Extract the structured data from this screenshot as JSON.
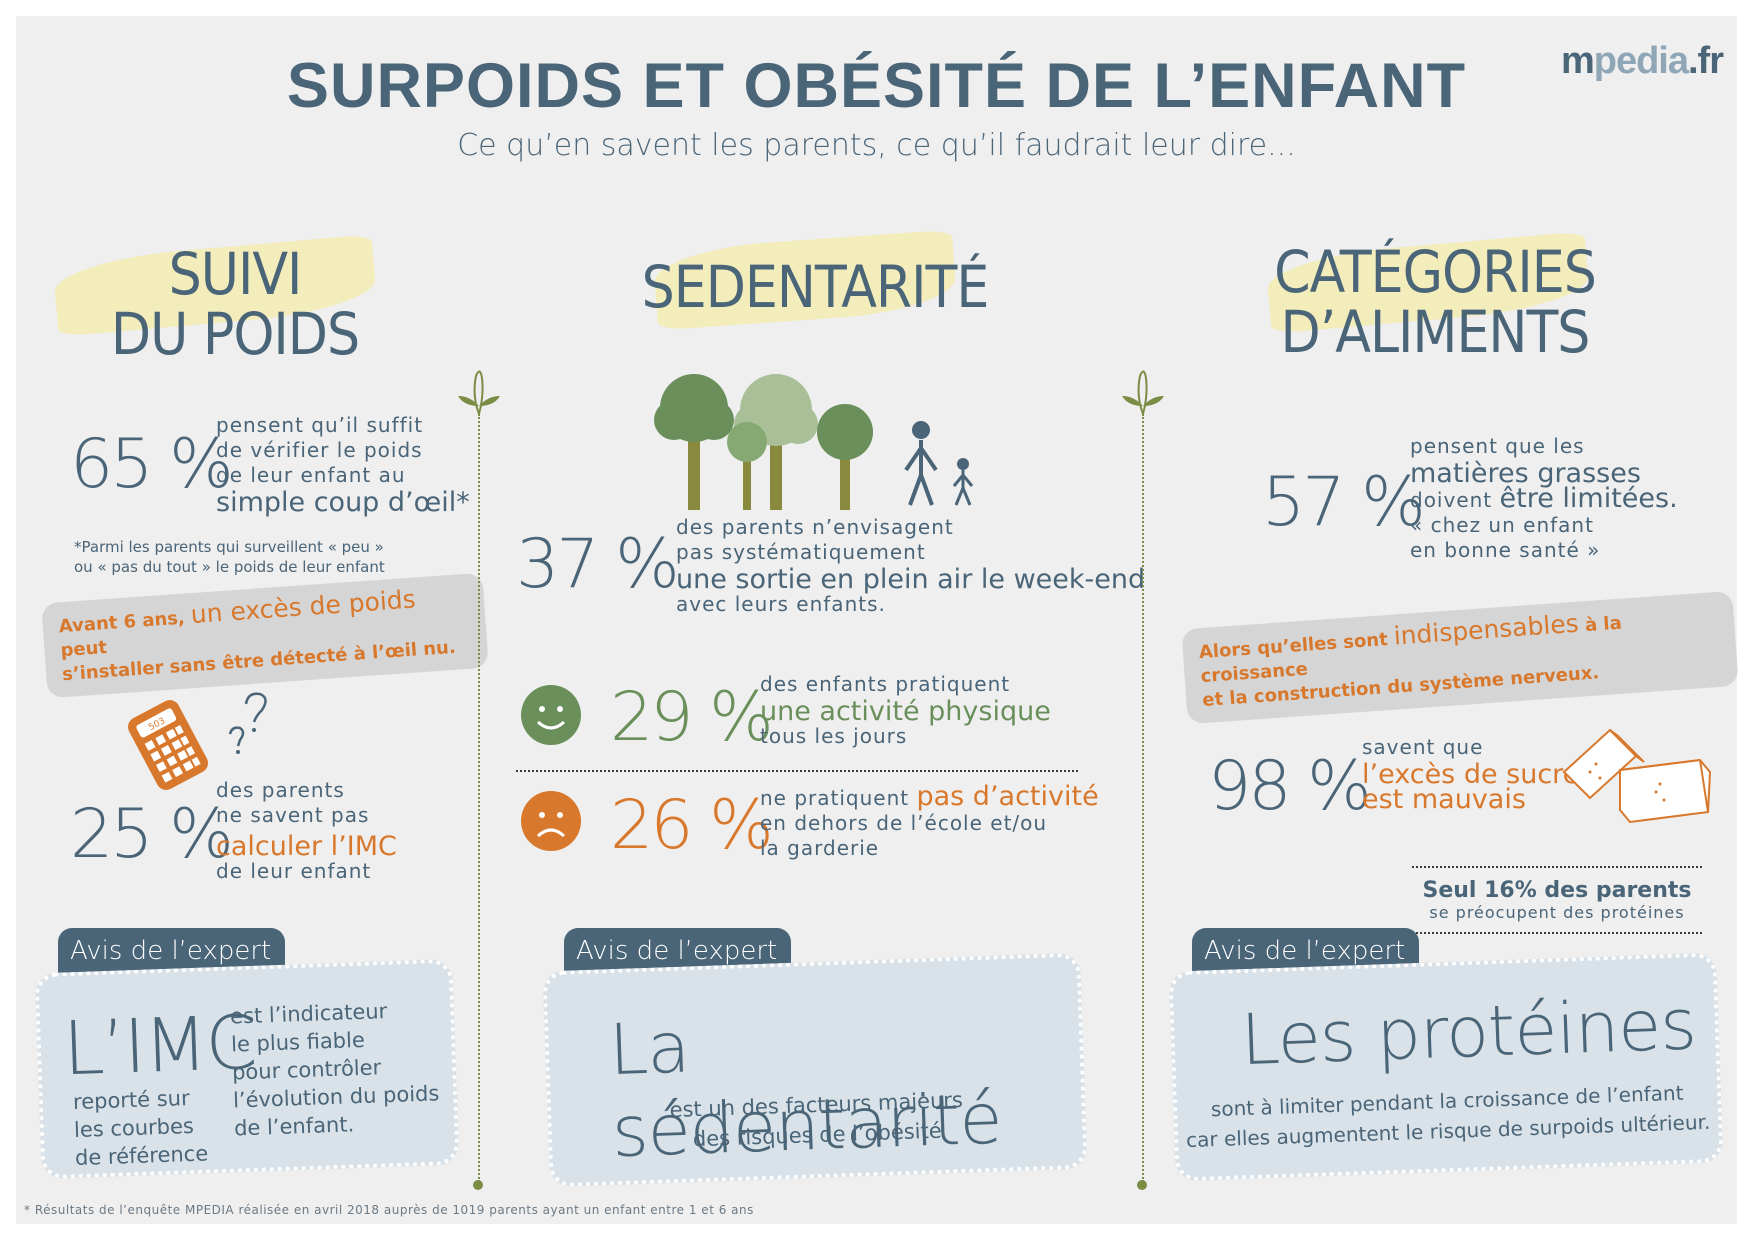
{
  "header": {
    "title": "SURPOIDS ET OBÉSITÉ DE L’ENFANT",
    "subtitle": "Ce qu’en savent les parents, ce qu’il faudrait leur dire...",
    "logo_m": "m",
    "logo_pedia": "pedia",
    "logo_fr": ".fr"
  },
  "col1": {
    "title_line1": "SUIVI",
    "title_line2": "DU POIDS",
    "stat1": {
      "value": "65 %",
      "line1": "pensent qu’il suffit",
      "line2": "de vérifier le poids",
      "line3": "de leur enfant au",
      "highlight": "simple coup d’œil*"
    },
    "note_line1": "*Parmi les parents qui surveillent « peu »",
    "note_line2": "ou « pas du tout » le poids de leur enfant",
    "banner_a": "Avant 6 ans,",
    "banner_b": "un excès de poids",
    "banner_c": "peut",
    "banner_d": "s’installer sans être détecté à l’œil nu.",
    "stat2": {
      "value": "25 %",
      "line1": "des parents",
      "line2": "ne savent pas",
      "highlight": "calculer l’IMC",
      "line3": "de leur enfant"
    },
    "calculator_display": "503",
    "expert_tab": "Avis de l’expert",
    "expert_big": "L’IMC",
    "expert_left1": "reporté sur",
    "expert_left2": "les courbes",
    "expert_left3": "de référence",
    "expert_right1": "est l’indicateur",
    "expert_right2": "le plus fiable",
    "expert_right3": "pour contrôler",
    "expert_right4": "l’évolution du poids",
    "expert_right5": "de l’enfant."
  },
  "col2": {
    "title": "SEDENTARITÉ",
    "stat1": {
      "value": "37 %",
      "line1": "des parents n’envisagent",
      "line2": "pas systématiquement",
      "highlight": "une sortie en plein air le week-end",
      "line3": "avec leurs enfants."
    },
    "stat2": {
      "value": "29 %",
      "line1": "des enfants pratiquent",
      "highlight": "une activité physique",
      "line2": "tous les jours"
    },
    "stat3": {
      "value": "26 %",
      "line1": "ne pratiquent",
      "highlight": "pas d’activité",
      "line2": "en dehors de l’école et/ou",
      "line3": "la garderie"
    },
    "expert_tab": "Avis de l’expert",
    "expert_big": "La sédentarité",
    "expert_line1": "est un des facteurs majeurs",
    "expert_line2": "des risques de l’obésité"
  },
  "col3": {
    "title_line1": "CATÉGORIES",
    "title_line2": "D’ALIMENTS",
    "stat1": {
      "value": "57 %",
      "line1": "pensent que les",
      "highlight1": "matières grasses",
      "line2": "doivent",
      "highlight2": "être limitées.",
      "line3": "« chez un enfant",
      "line4": "en bonne santé »"
    },
    "banner_a": "Alors qu’elles sont",
    "banner_b": "indispensables",
    "banner_c": "à la croissance",
    "banner_d": "et la construction du système nerveux.",
    "stat2": {
      "value": "98 %",
      "line1": "savent que",
      "highlight1": "l’excès de sucre",
      "highlight2": "est mauvais"
    },
    "seul_bold": "Seul 16% des parents",
    "seul_small": "se préocupent des protéines",
    "expert_tab": "Avis de l’expert",
    "expert_big": "Les protéines",
    "expert_line1": "sont à limiter pendant la croissance de l’enfant",
    "expert_line2": "car elles augmentent le risque de surpoids ultérieur."
  },
  "footnote": "* Résultats de l’enquête MPEDIA réalisée en avril 2018 auprès de 1019 parents ayant un enfant entre 1 et 6 ans",
  "colors": {
    "blue": "#4a6478",
    "orange": "#d8782c",
    "green": "#6a8f5a",
    "yellow_brush": "#f3ecb3",
    "background": "#efefef"
  },
  "icons": [
    "tree-icon",
    "person-icon",
    "child-icon",
    "smiley-happy-icon",
    "smiley-sad-icon",
    "calculator-icon",
    "question-mark-icon",
    "sugar-cube-icon",
    "sprout-icon"
  ]
}
